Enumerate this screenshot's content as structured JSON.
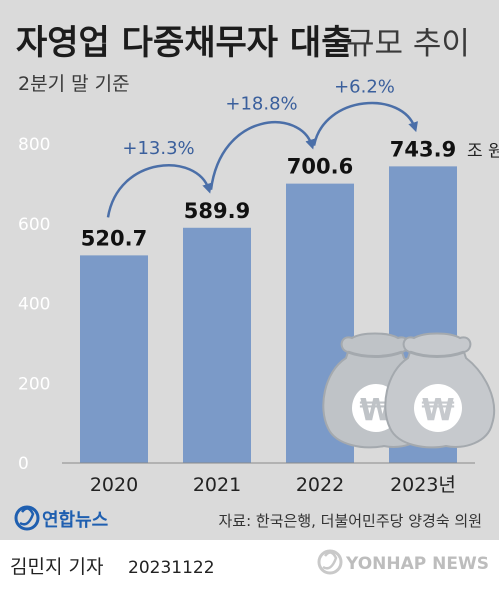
{
  "chart_data": {
    "type": "bar",
    "title": "자영업 다중채무자 대출",
    "title_suffix": "규모 추이",
    "subtitle": "2분기 말 기준",
    "categories": [
      "2020",
      "2021",
      "2022",
      "2023년"
    ],
    "values": [
      520.7,
      589.9,
      700.6,
      743.9
    ],
    "value_labels": [
      "520.7",
      "589.9",
      "700.6",
      "743.9"
    ],
    "unit_label": "조 원",
    "ylim": [
      0,
      800
    ],
    "yticks": [
      0,
      200,
      400,
      600,
      800
    ],
    "grid": false,
    "growth_annotations": [
      "+13.3%",
      "+18.8%",
      "+6.2%"
    ],
    "colors": {
      "bar": "#7b9ac8",
      "background": "#dadada",
      "arrow": "#4b6fa8",
      "annotation_text": "#3a5f9c",
      "tick_text": "#ffffff",
      "value_text": "#111111",
      "money_bag": "#bfc3c7",
      "money_bag_dark": "#a4a9ae"
    },
    "decoration": [
      "money-bag-won-icon",
      "money-bag-won-icon"
    ]
  },
  "footer": {
    "agency_logo": "연합뉴스",
    "source": "자료: 한국은행, 더불어민주당 양경숙 의원",
    "reporter": "김민지 기자",
    "date": "20231122",
    "watermark": "YONHAP NEWS"
  }
}
